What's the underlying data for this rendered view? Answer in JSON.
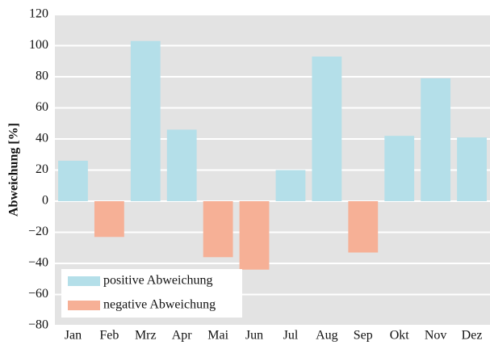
{
  "chart_data": {
    "type": "bar",
    "ylabel": "Abweichung [%]",
    "categories": [
      "Jan",
      "Feb",
      "Mrz",
      "Apr",
      "Mai",
      "Jun",
      "Jul",
      "Aug",
      "Sep",
      "Okt",
      "Nov",
      "Dez"
    ],
    "series": [
      {
        "name": "positive Abweichung",
        "color": "#b4dfe9",
        "values": [
          26,
          null,
          103,
          46,
          null,
          null,
          20,
          93,
          null,
          42,
          79,
          41
        ]
      },
      {
        "name": "negative Abweichung",
        "color": "#f6b096",
        "values": [
          null,
          -23,
          null,
          null,
          -36,
          -44,
          null,
          null,
          -33,
          null,
          null,
          null
        ]
      }
    ],
    "ylim": [
      -80,
      120
    ],
    "yticks": [
      {
        "value": -80,
        "label": "−80"
      },
      {
        "value": -60,
        "label": "−60"
      },
      {
        "value": -40,
        "label": "−40"
      },
      {
        "value": -20,
        "label": "−20"
      },
      0,
      20,
      40,
      60,
      80,
      100,
      120
    ],
    "grid": true,
    "legend": "lower left"
  }
}
